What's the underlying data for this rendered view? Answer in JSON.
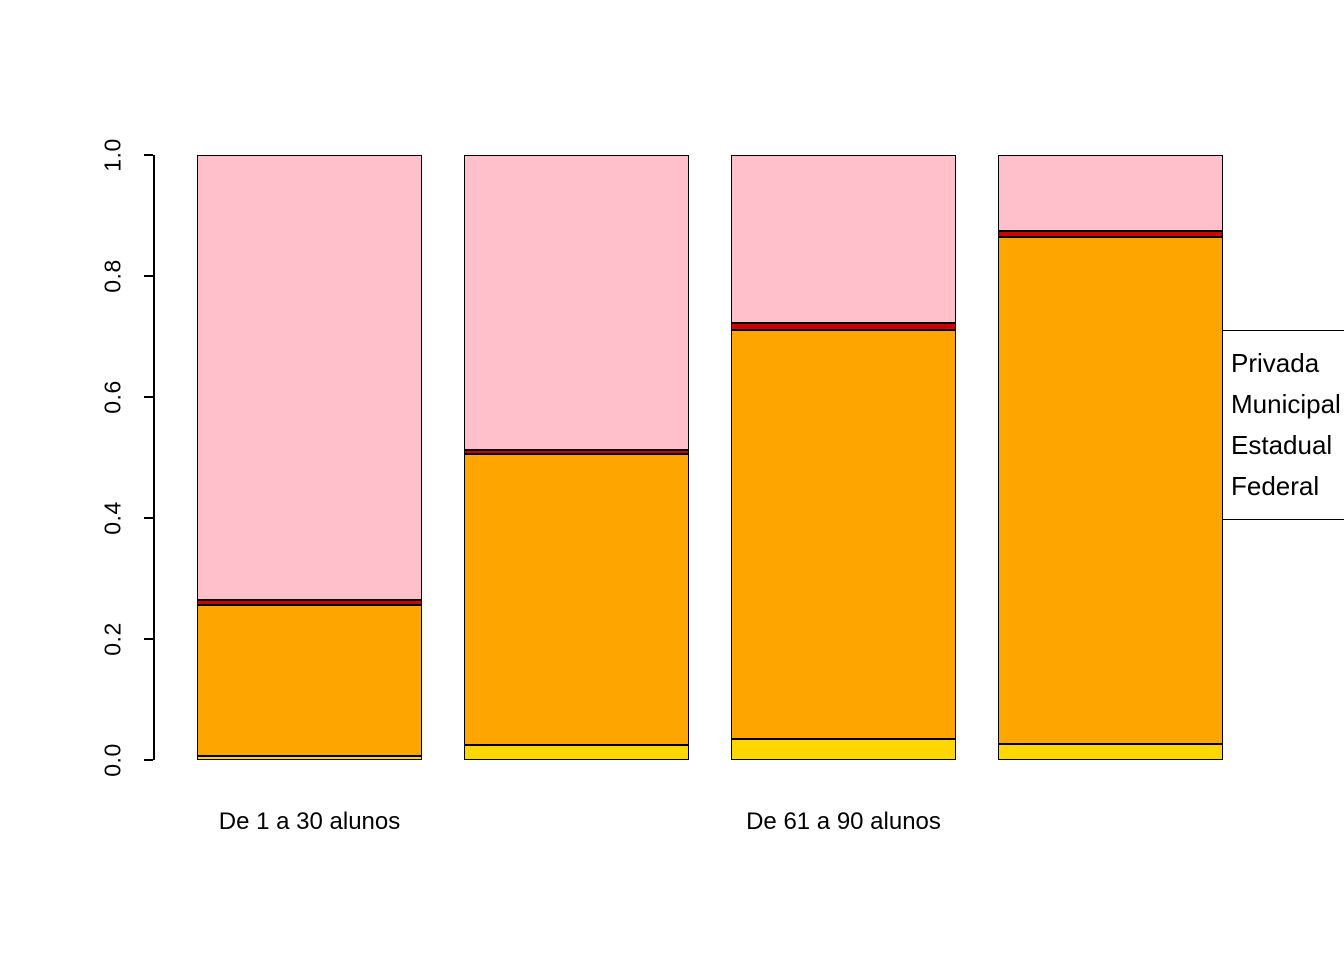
{
  "chart_data": {
    "type": "bar",
    "stacked": true,
    "proportional": true,
    "title": "",
    "xlabel": "",
    "ylabel": "",
    "categories": [
      "De 1 a 30 alunos",
      "",
      "De 61 a 90 alunos",
      ""
    ],
    "series": [
      {
        "name": "Federal",
        "color": "#FFD700",
        "values": [
          0.007,
          0.025,
          0.035,
          0.027
        ]
      },
      {
        "name": "Estadual",
        "color": "#FFA500",
        "values": [
          0.25,
          0.48,
          0.675,
          0.838
        ]
      },
      {
        "name": "Municipal",
        "color": "#CC0000",
        "values": [
          0.008,
          0.008,
          0.012,
          0.01
        ]
      },
      {
        "name": "Privada",
        "color": "#FFC0CB",
        "values": [
          0.735,
          0.487,
          0.278,
          0.125
        ]
      }
    ],
    "ylim": [
      0.0,
      1.0
    ],
    "yticks": [
      "0.0",
      "0.2",
      "0.4",
      "0.6",
      "0.8",
      "1.0"
    ],
    "grid": false,
    "bar_edge_color": "#000000",
    "legend": {
      "position": "top-right",
      "entries": [
        "Privada",
        "Municipal",
        "Estadual",
        "Federal"
      ]
    }
  }
}
